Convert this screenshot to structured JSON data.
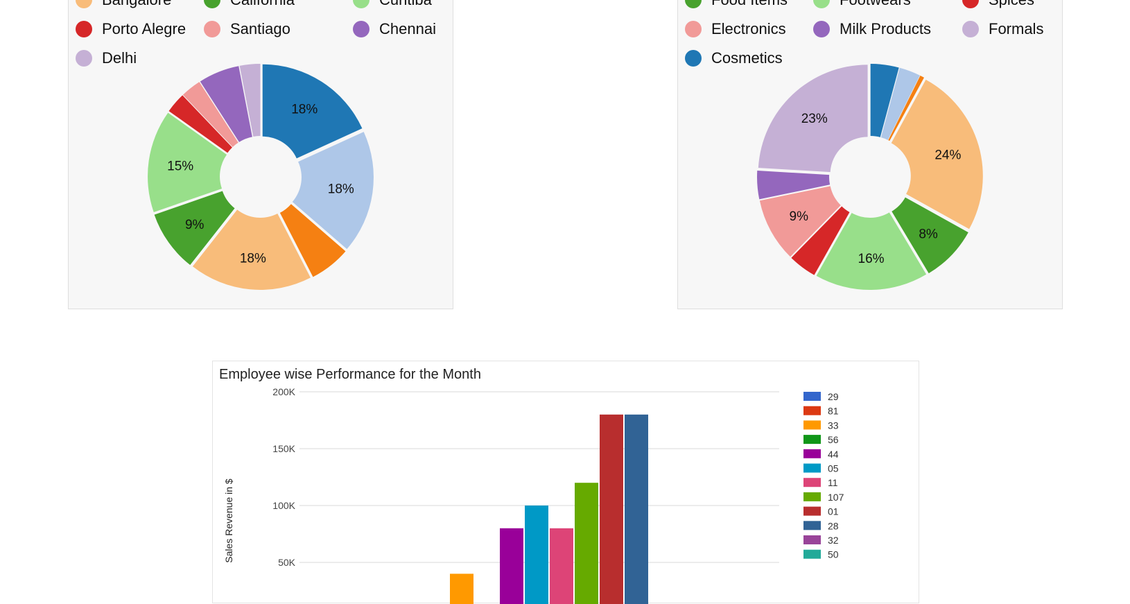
{
  "chart_data": [
    {
      "type": "pie",
      "donut": true,
      "legend": {
        "position": "top"
      },
      "labels": [
        "Bangalore",
        "California",
        "Curitiba",
        "Porto Alegre",
        "Santiago",
        "Chennai",
        "Delhi"
      ],
      "segments": [
        {
          "label": "",
          "value": 18,
          "shown": "18%",
          "color": "#1f77b4"
        },
        {
          "label": "",
          "value": 18,
          "shown": "18%",
          "color": "#aec7e8"
        },
        {
          "label": "",
          "value": 6,
          "shown": "",
          "color": "#f58012"
        },
        {
          "label": "Bangalore",
          "value": 18,
          "shown": "18%",
          "color": "#f8bc7a"
        },
        {
          "label": "California",
          "value": 9,
          "shown": "9%",
          "color": "#48a22e"
        },
        {
          "label": "Curitiba",
          "value": 15,
          "shown": "15%",
          "color": "#98df8a"
        },
        {
          "label": "Porto Alegre",
          "value": 3,
          "shown": "",
          "color": "#d62728"
        },
        {
          "label": "Santiago",
          "value": 3,
          "shown": "",
          "color": "#f19a98"
        },
        {
          "label": "Chennai",
          "value": 6,
          "shown": "",
          "color": "#9467bd"
        },
        {
          "label": "Delhi",
          "value": 3,
          "shown": "",
          "color": "#c5b0d5"
        }
      ]
    },
    {
      "type": "pie",
      "donut": true,
      "legend": {
        "position": "top"
      },
      "labels": [
        "Food Items",
        "Footwears",
        "Spices",
        "Electronics",
        "Milk Products",
        "Formals",
        "Cosmetics"
      ],
      "segments": [
        {
          "label": "Cosmetics",
          "value": 4,
          "shown": "",
          "color": "#1f77b4"
        },
        {
          "label": "",
          "value": 3,
          "shown": "",
          "color": "#aec7e8"
        },
        {
          "label": "",
          "value": 0.6,
          "shown": "",
          "color": "#f58012"
        },
        {
          "label": "",
          "value": 24,
          "shown": "24%",
          "color": "#f8bc7a"
        },
        {
          "label": "Food Items",
          "value": 8,
          "shown": "8%",
          "color": "#48a22e"
        },
        {
          "label": "Footwears",
          "value": 16,
          "shown": "16%",
          "color": "#98df8a"
        },
        {
          "label": "Spices",
          "value": 4,
          "shown": "",
          "color": "#d62728"
        },
        {
          "label": "Electronics",
          "value": 9,
          "shown": "9%",
          "color": "#f19a98"
        },
        {
          "label": "Milk Products",
          "value": 4,
          "shown": "",
          "color": "#9467bd"
        },
        {
          "label": "Formals",
          "value": 23,
          "shown": "23%",
          "color": "#c5b0d5"
        }
      ]
    },
    {
      "type": "bar",
      "title": "Employee wise Performance for the Month",
      "ylabel": "Sales Revenue in $",
      "ylim": [
        0,
        200000
      ],
      "yticks": [
        "200K",
        "150K",
        "100K",
        "50K"
      ],
      "ytick_values": [
        200000,
        150000,
        100000,
        50000
      ],
      "grid": true,
      "legend": {
        "position": "right"
      },
      "series": [
        {
          "name": "29",
          "value": null,
          "color": "#3366cc"
        },
        {
          "name": "81",
          "value": null,
          "color": "#dc3912"
        },
        {
          "name": "33",
          "value": 40000,
          "color": "#ff9900"
        },
        {
          "name": "56",
          "value": null,
          "color": "#109618"
        },
        {
          "name": "44",
          "value": 80000,
          "color": "#990099"
        },
        {
          "name": "05",
          "value": 100000,
          "color": "#0099c6"
        },
        {
          "name": "11",
          "value": 80000,
          "color": "#dd4477"
        },
        {
          "name": "107",
          "value": 120000,
          "color": "#66aa00"
        },
        {
          "name": "01",
          "value": 180000,
          "color": "#b82e2e"
        },
        {
          "name": "28",
          "value": 180000,
          "color": "#316395"
        },
        {
          "name": "32",
          "value": null,
          "color": "#994499"
        },
        {
          "name": "50",
          "value": null,
          "color": "#22aa99"
        }
      ]
    }
  ]
}
